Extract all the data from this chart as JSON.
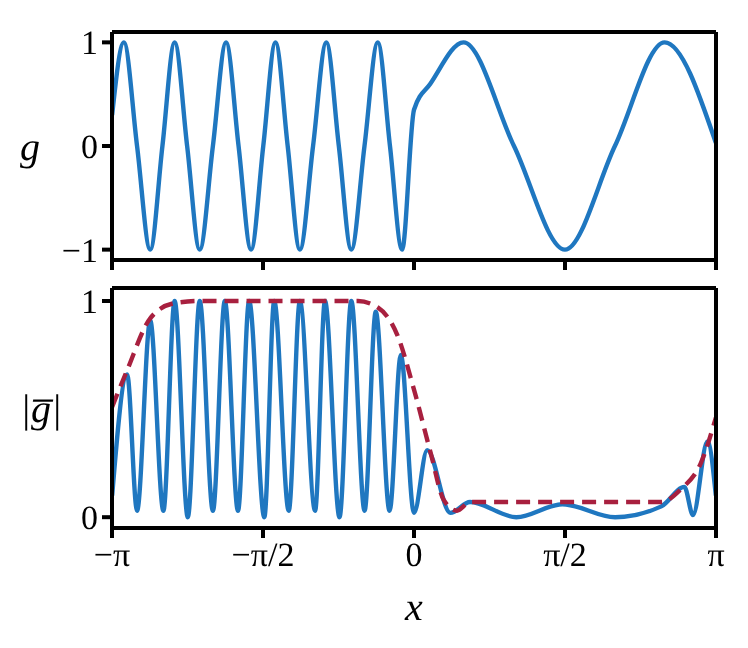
{
  "chart_data": [
    {
      "type": "line",
      "ylabel": "g",
      "xlim": [
        -3.1416,
        3.1416
      ],
      "ylim": [
        -1.1,
        1.1
      ],
      "xticks": [
        {
          "value": -3.1416,
          "label": null
        },
        {
          "value": -1.5708,
          "label": null
        },
        {
          "value": 0,
          "label": null
        },
        {
          "value": 1.5708,
          "label": null
        },
        {
          "value": 3.1416,
          "label": null
        }
      ],
      "yticks": [
        -1,
        0,
        1
      ],
      "tick_labels": "y",
      "marker": "none",
      "series": [
        {
          "color": "#1f77c0",
          "line_style": "solid",
          "x": [
            -3.14,
            -3.018,
            -2.881,
            -2.744,
            -2.617,
            -2.49,
            -2.36,
            -2.229,
            -2.092,
            -1.955,
            -1.825,
            -1.695,
            -1.568,
            -1.441,
            -1.314,
            -1.187,
            -1.05,
            -0.912,
            -0.782,
            -0.652,
            -0.515,
            -0.377,
            -0.25,
            -0.124,
            0,
            0.17,
            0.515,
            1.04,
            1.57,
            2.09,
            2.607,
            3.14
          ],
          "values": [
            0.3,
            1,
            0,
            -1,
            0,
            1,
            0,
            -1,
            0,
            1,
            0,
            -1,
            0,
            1,
            0,
            -1,
            0,
            1,
            0,
            -1,
            0,
            1,
            0,
            -1,
            0.35,
            0.6,
            1,
            0,
            -1,
            0,
            1,
            0.03
          ]
        }
      ]
    },
    {
      "type": "line",
      "ylabel": "|g̅|",
      "xlabel": "x",
      "xlim": [
        -3.1416,
        3.1416
      ],
      "ylim": [
        -0.05,
        1.06
      ],
      "xticks": [
        {
          "value": -3.1416,
          "label": "−π"
        },
        {
          "value": -1.5708,
          "label": "−π/2"
        },
        {
          "value": 0,
          "label": "0"
        },
        {
          "value": 1.5708,
          "label": "π/2"
        },
        {
          "value": 3.1416,
          "label": "π"
        }
      ],
      "yticks": [
        0,
        1
      ],
      "marker": "none",
      "series": [
        {
          "color": "#1f77c0",
          "line_style": "solid",
          "x": [
            -3.14,
            -2.984,
            -2.881,
            -2.744,
            -2.607,
            -2.49,
            -2.353,
            -2.229,
            -2.092,
            -1.968,
            -1.831,
            -1.715,
            -1.557,
            -1.454,
            -1.303,
            -1.187,
            -1.029,
            -0.926,
            -0.775,
            -0.652,
            -0.514,
            -0.398,
            -0.254,
            -0.137,
            0,
            0.137,
            0.378,
            0.583,
            1.064,
            1.544,
            2.092,
            2.573,
            2.813,
            2.902,
            3.053,
            3.14
          ],
          "values": [
            0.1,
            0.66,
            0.03,
            0.91,
            0.03,
            1,
            0,
            1,
            0.03,
            1,
            0.03,
            1,
            0,
            1,
            0.03,
            1,
            0.03,
            1,
            0,
            1,
            0.03,
            0.95,
            0.03,
            0.75,
            0.02,
            0.31,
            0.02,
            0.07,
            0,
            0.06,
            0,
            0.05,
            0.14,
            0.01,
            0.35,
            0.1
          ]
        },
        {
          "color": "#a8203f",
          "line_style": "dashed",
          "x": [
            -3.14,
            -2.984,
            -2.744,
            -2.49,
            -2.229,
            -0.583,
            -0.377,
            -0.171,
            0,
            0.172,
            0.309,
            0.446,
            0.583,
            2.573,
            2.778,
            2.984,
            3.14
          ],
          "values": [
            0.51,
            0.68,
            0.92,
            0.99,
            1,
            1,
            0.97,
            0.84,
            0.59,
            0.3,
            0.08,
            0.03,
            0.07,
            0.07,
            0.13,
            0.25,
            0.46
          ]
        }
      ]
    }
  ]
}
